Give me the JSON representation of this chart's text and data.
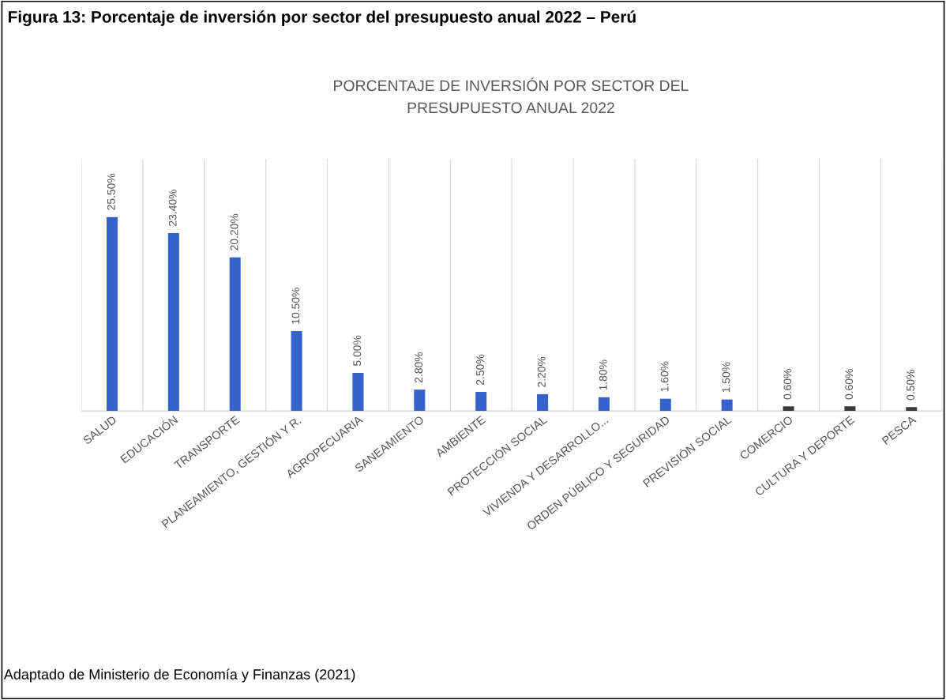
{
  "chart_data": {
    "type": "bar",
    "title": "Figura 13: Porcentaje de inversión por sector del presupuesto anual 2022 – Perú",
    "subtitle": "PORCENTAJE DE INVERSIÓN POR SECTOR DEL\nPRESUPUESTO ANUAL 2022",
    "categories": [
      "SALUD",
      "EDUCACIÓN",
      "TRANSPORTE",
      "PLANEAMIENTO, GESTIÓN Y R.",
      "AGROPECUARIA",
      "SANEAMIENTO",
      "AMBIENTE",
      "PROTECCIÓN SOCIAL",
      "VIVIENDA Y DESARROLLO...",
      "ORDEN PÚBLICO Y SEGURIDAD",
      "PREVISIÓN SOCIAL",
      "COMERCIO",
      "CULTURA Y DEPORTE",
      "PESCA"
    ],
    "values": [
      25.5,
      23.4,
      20.2,
      10.5,
      5.0,
      2.8,
      2.5,
      2.2,
      1.8,
      1.6,
      1.5,
      0.6,
      0.6,
      0.5
    ],
    "value_labels": [
      "25.50%",
      "23.40%",
      "20.20%",
      "10.50%",
      "5.00%",
      "2.80%",
      "2.50%",
      "2.20%",
      "1.80%",
      "1.60%",
      "1.50%",
      "0.60%",
      "0.60%",
      "0.50%"
    ],
    "colors": [
      "#3563c9",
      "#3563c9",
      "#3563c9",
      "#3563c9",
      "#3563c9",
      "#3563c9",
      "#3563c9",
      "#3563c9",
      "#3563c9",
      "#3563c9",
      "#3563c9",
      "#3a3a3a",
      "#3a3a3a",
      "#3a3a3a"
    ],
    "grid": "x",
    "annotations": [
      "Adaptado de Ministerio de Economía y Finanzas (2021)"
    ]
  }
}
